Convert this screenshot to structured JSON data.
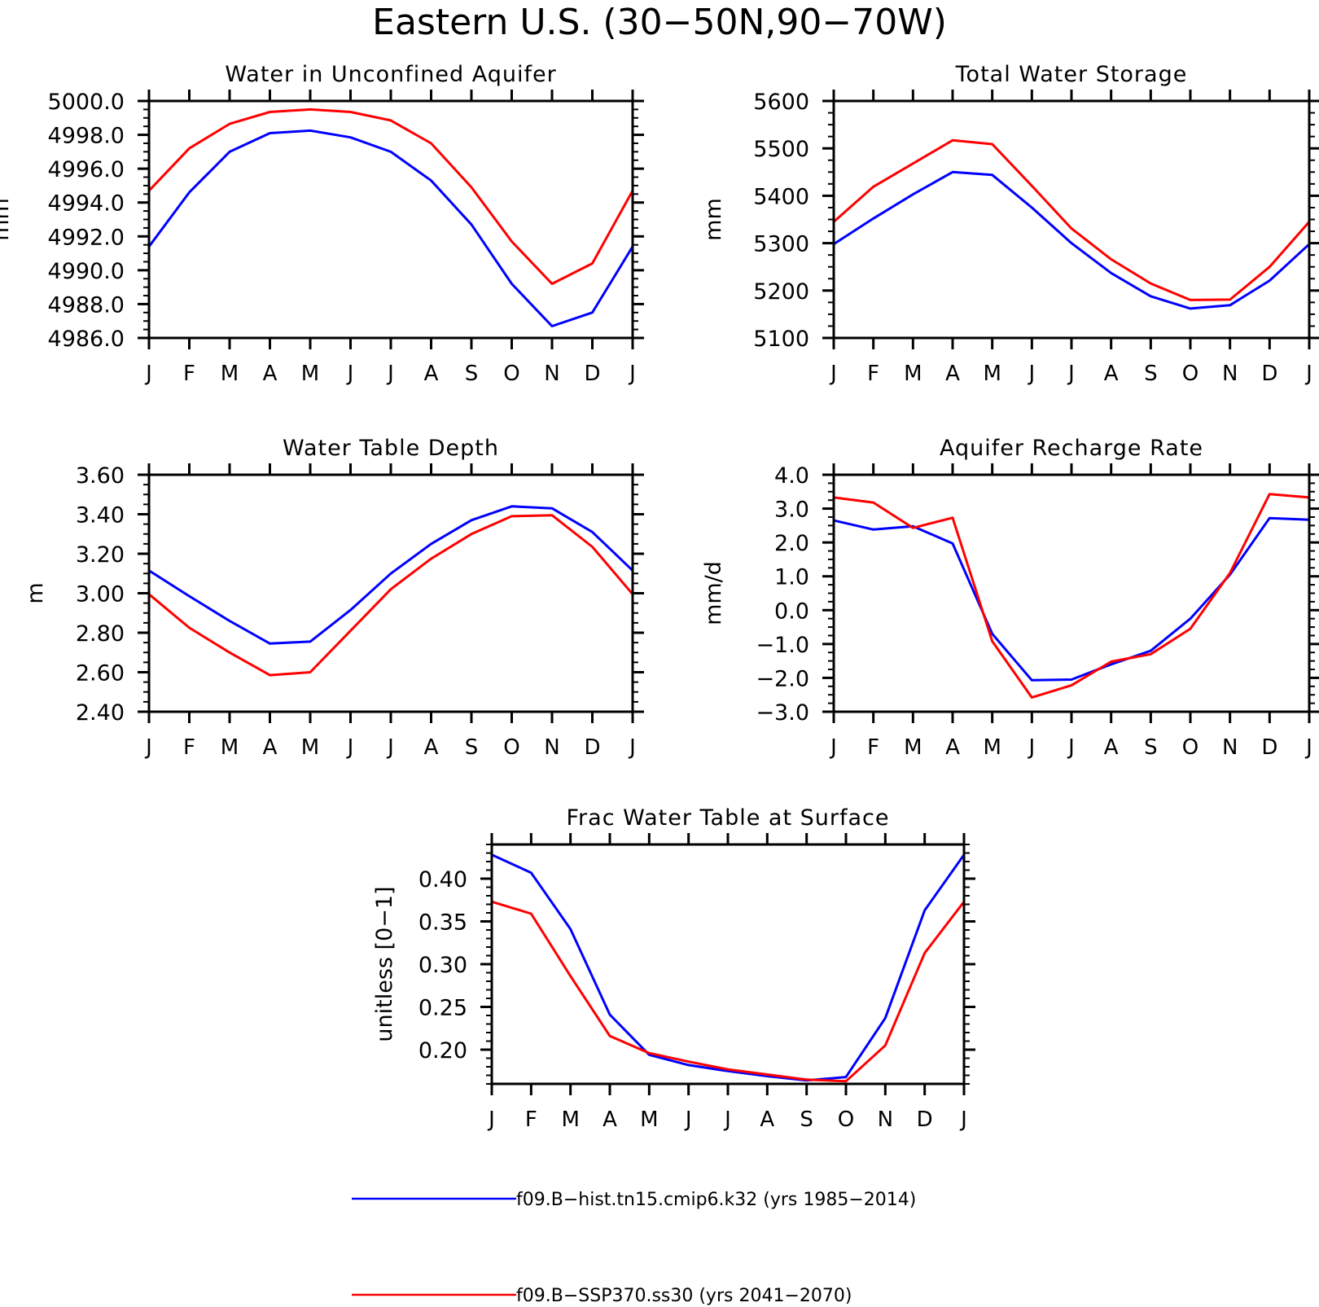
{
  "title": "Eastern U.S. (30−50N,90−70W)",
  "colors": {
    "hist": "#0000ff",
    "future": "#ff0000",
    "frame": "#000000"
  },
  "legend": [
    {
      "label": "f09.B−hist.tn15.cmip6.k32 (yrs 1985−2014)",
      "color": "#0000ff"
    },
    {
      "label": "f09.B−SSP370.ss30 (yrs 2041−2070)",
      "color": "#ff0000"
    }
  ],
  "chart_data": [
    {
      "type": "line",
      "title": "Water in Unconfined Aquifer",
      "ylabel": "mm",
      "xlabel": "",
      "categories": [
        "J",
        "F",
        "M",
        "A",
        "M",
        "J",
        "J",
        "A",
        "S",
        "O",
        "N",
        "D",
        "J"
      ],
      "ylim": [
        4986.0,
        5000.0
      ],
      "yticks": [
        "4986.0",
        "4988.0",
        "4990.0",
        "4992.0",
        "4994.0",
        "4996.0",
        "4998.0",
        "5000.0"
      ],
      "grid": false,
      "series": [
        {
          "color": "#0000ff",
          "values": [
            4991.4,
            4994.6,
            4997.0,
            4998.1,
            4998.25,
            4997.85,
            4997.0,
            4995.3,
            4992.7,
            4989.2,
            4986.7,
            4987.5,
            4991.4
          ]
        },
        {
          "color": "#ff0000",
          "values": [
            4994.7,
            4997.2,
            4998.65,
            4999.35,
            4999.5,
            4999.35,
            4998.85,
            4997.5,
            4994.9,
            4991.7,
            4989.2,
            4990.4,
            4994.7
          ]
        }
      ]
    },
    {
      "type": "line",
      "title": "Total Water Storage",
      "ylabel": "mm",
      "xlabel": "",
      "categories": [
        "J",
        "F",
        "M",
        "A",
        "M",
        "J",
        "J",
        "A",
        "S",
        "O",
        "N",
        "D",
        "J"
      ],
      "ylim": [
        5100,
        5600
      ],
      "yticks": [
        "5100",
        "5200",
        "5300",
        "5400",
        "5500",
        "5600"
      ],
      "grid": false,
      "series": [
        {
          "color": "#0000ff",
          "values": [
            5298,
            5352,
            5403,
            5450,
            5444,
            5375,
            5300,
            5237,
            5188,
            5162,
            5169,
            5221,
            5298
          ]
        },
        {
          "color": "#ff0000",
          "values": [
            5345,
            5419,
            5468,
            5517,
            5509,
            5421,
            5331,
            5266,
            5215,
            5180,
            5181,
            5250,
            5345
          ]
        }
      ]
    },
    {
      "type": "line",
      "title": "Water Table Depth",
      "ylabel": "m",
      "xlabel": "",
      "categories": [
        "J",
        "F",
        "M",
        "A",
        "M",
        "J",
        "J",
        "A",
        "S",
        "O",
        "N",
        "D",
        "J"
      ],
      "ylim": [
        2.4,
        3.6
      ],
      "yticks": [
        "2.40",
        "2.60",
        "2.80",
        "3.00",
        "3.20",
        "3.40",
        "3.60"
      ],
      "grid": false,
      "series": [
        {
          "color": "#0000ff",
          "values": [
            3.115,
            2.985,
            2.86,
            2.745,
            2.755,
            2.915,
            3.1,
            3.25,
            3.37,
            3.44,
            3.43,
            3.31,
            3.115
          ]
        },
        {
          "color": "#ff0000",
          "values": [
            2.995,
            2.825,
            2.7,
            2.585,
            2.6,
            2.81,
            3.02,
            3.175,
            3.3,
            3.39,
            3.395,
            3.235,
            2.995
          ]
        }
      ]
    },
    {
      "type": "line",
      "title": "Aquifer Recharge Rate",
      "ylabel": "mm/d",
      "xlabel": "",
      "categories": [
        "J",
        "F",
        "M",
        "A",
        "M",
        "J",
        "J",
        "A",
        "S",
        "O",
        "N",
        "D",
        "J"
      ],
      "ylim": [
        -3.0,
        4.0
      ],
      "yticks": [
        "−3.0",
        "−2.0",
        "−1.0",
        "0.0",
        "1.0",
        "2.0",
        "3.0",
        "4.0"
      ],
      "grid": false,
      "series": [
        {
          "color": "#0000ff",
          "values": [
            2.65,
            2.38,
            2.48,
            1.97,
            -0.7,
            -2.07,
            -2.05,
            -1.6,
            -1.2,
            -0.25,
            1.05,
            2.72,
            2.67
          ]
        },
        {
          "color": "#ff0000",
          "values": [
            3.33,
            3.18,
            2.43,
            2.73,
            -0.92,
            -2.58,
            -2.22,
            -1.52,
            -1.3,
            -0.55,
            1.1,
            3.43,
            3.33
          ]
        }
      ]
    },
    {
      "type": "line",
      "title": "Frac Water Table at Surface",
      "ylabel": "unitless [0−1]",
      "xlabel": "",
      "categories": [
        "J",
        "F",
        "M",
        "A",
        "M",
        "J",
        "J",
        "A",
        "S",
        "O",
        "N",
        "D",
        "J"
      ],
      "ylim": [
        0.16,
        0.44
      ],
      "yticks": [
        "0.20",
        "0.25",
        "0.30",
        "0.35",
        "0.40"
      ],
      "grid": false,
      "series": [
        {
          "color": "#0000ff",
          "values": [
            0.428,
            0.407,
            0.341,
            0.241,
            0.194,
            0.182,
            0.175,
            0.169,
            0.164,
            0.168,
            0.237,
            0.363,
            0.428
          ]
        },
        {
          "color": "#ff0000",
          "values": [
            0.373,
            0.359,
            0.286,
            0.216,
            0.196,
            0.186,
            0.177,
            0.171,
            0.165,
            0.163,
            0.205,
            0.313,
            0.373
          ]
        }
      ]
    }
  ]
}
